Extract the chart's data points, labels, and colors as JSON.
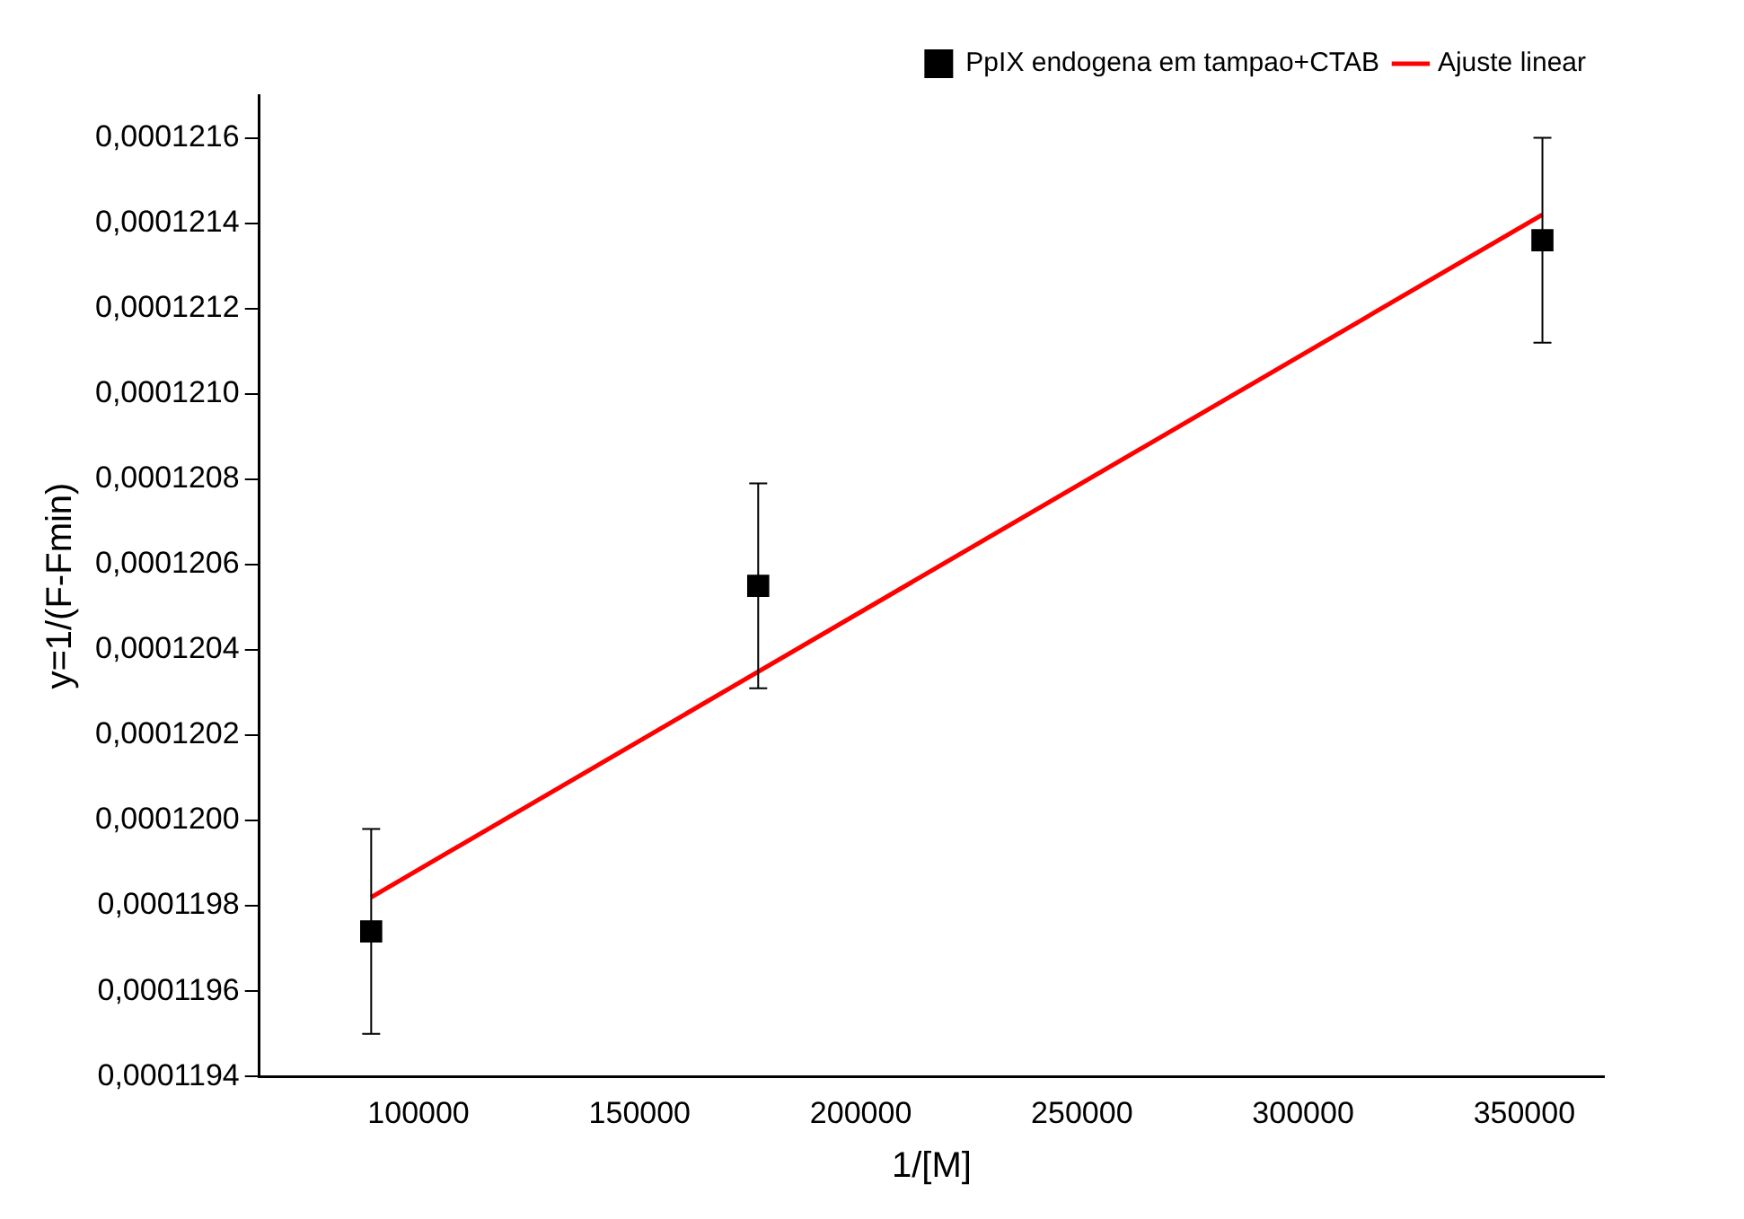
{
  "chart_data": {
    "type": "scatter",
    "xlabel": "1/[M]",
    "ylabel": "y=1/(F-Fmin)",
    "legend": "top right",
    "grid": false,
    "xlim": [
      64000,
      368000
    ],
    "xticks": [
      100000,
      150000,
      200000,
      250000,
      300000,
      350000
    ],
    "ylim": [
      0.0001194,
      0.0001217
    ],
    "yticks": [
      {
        "value": 0.0001194,
        "label": "0,0001194"
      },
      {
        "value": 0.0001196,
        "label": "0,0001196"
      },
      {
        "value": 0.0001198,
        "label": "0,0001198"
      },
      {
        "value": 0.00012,
        "label": "0,0001200"
      },
      {
        "value": 0.0001202,
        "label": "0,0001202"
      },
      {
        "value": 0.0001204,
        "label": "0,0001204"
      },
      {
        "value": 0.0001206,
        "label": "0,0001206"
      },
      {
        "value": 0.0001208,
        "label": "0,0001208"
      },
      {
        "value": 0.000121,
        "label": "0,0001210"
      },
      {
        "value": 0.0001212,
        "label": "0,0001212"
      },
      {
        "value": 0.0001214,
        "label": "0,0001214"
      },
      {
        "value": 0.0001216,
        "label": "0,0001216"
      }
    ],
    "series": [
      {
        "name": "PpIX endogena em tampao+CTAB",
        "marker": "square",
        "color": "#000000",
        "x": [
          89300,
          176800,
          354100
        ],
        "values": [
          0.00011974,
          0.00012055,
          0.00012136
        ],
        "errors": [
          2.4e-07,
          2.4e-07,
          2.4e-07
        ]
      },
      {
        "name": "Ajuste linear",
        "type": "line",
        "marker": "none",
        "color": "#ff0000",
        "x": [
          89300,
          354100
        ],
        "values": [
          0.00011982,
          0.00012142
        ]
      }
    ]
  }
}
